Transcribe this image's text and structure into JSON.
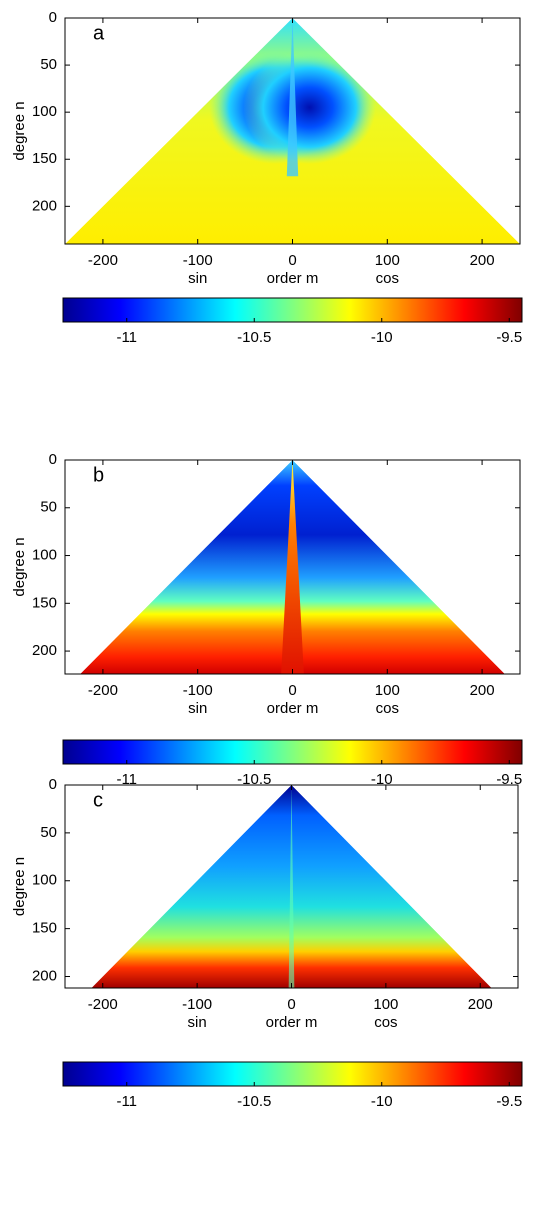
{
  "chart_data": [
    {
      "type": "heatmap",
      "label": "a",
      "xlabel": "order m",
      "ylabel": "degree n",
      "annotations": [
        "sin",
        "cos"
      ],
      "xlim": [
        -240,
        240
      ],
      "ylim": [
        0,
        240
      ],
      "xticks": [
        -200,
        -100,
        0,
        100,
        200
      ],
      "yticks": [
        0,
        50,
        100,
        150,
        200
      ],
      "y_inverted": true,
      "colorbar": {
        "clim": [
          -11.25,
          -9.45
        ],
        "ticks": [
          -11,
          -10.5,
          -10,
          -9.5
        ],
        "colormap": [
          "#00008f",
          "#0000ff",
          "#0080ff",
          "#00ffff",
          "#80ff80",
          "#ffff00",
          "#ff8000",
          "#ff0000",
          "#800000"
        ]
      }
    },
    {
      "type": "heatmap",
      "label": "b",
      "xlabel": "order m",
      "ylabel": "degree n",
      "annotations": [
        "sin",
        "cos"
      ],
      "xlim": [
        -240,
        240
      ],
      "ylim": [
        0,
        224
      ],
      "xticks": [
        -200,
        -100,
        0,
        100,
        200
      ],
      "yticks": [
        0,
        50,
        100,
        150,
        200
      ],
      "y_inverted": true,
      "colorbar": {
        "clim": [
          -11.25,
          -9.45
        ],
        "ticks": [
          -11,
          -10.5,
          -10,
          -9.5
        ],
        "colormap": [
          "#00008f",
          "#0000ff",
          "#0080ff",
          "#00ffff",
          "#80ff80",
          "#ffff00",
          "#ff8000",
          "#ff0000",
          "#800000"
        ]
      }
    },
    {
      "type": "heatmap",
      "label": "c",
      "xlabel": "order m",
      "ylabel": "degree n",
      "annotations": [
        "sin",
        "cos"
      ],
      "xlim": [
        -240,
        240
      ],
      "ylim": [
        0,
        212
      ],
      "xticks": [
        -200,
        -100,
        0,
        100,
        200
      ],
      "yticks": [
        0,
        50,
        100,
        150,
        200
      ],
      "y_inverted": true,
      "colorbar": {
        "clim": [
          -11.25,
          -9.45
        ],
        "ticks": [
          -11,
          -10.5,
          -10,
          -9.5
        ],
        "colormap": [
          "#00008f",
          "#0000ff",
          "#0080ff",
          "#00ffff",
          "#80ff80",
          "#ffff00",
          "#ff8000",
          "#ff0000",
          "#800000"
        ]
      }
    }
  ]
}
